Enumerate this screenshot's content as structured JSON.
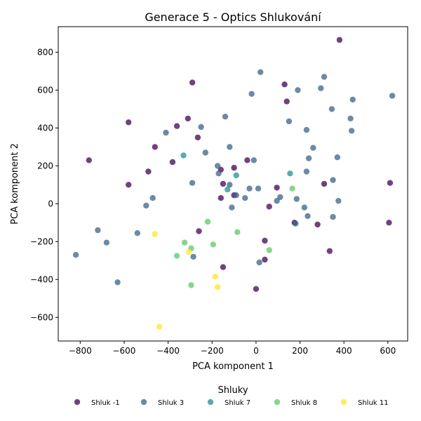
{
  "chart_data": {
    "type": "scatter",
    "title": "Generace 5 - Optics Shlukování",
    "xlabel": "PCA komponent 1",
    "ylabel": "PCA komponent 2",
    "xlim": [
      -900,
      690
    ],
    "ylim": [
      -725,
      935
    ],
    "xticks": [
      -800,
      -600,
      -400,
      -200,
      0,
      200,
      400,
      600
    ],
    "yticks": [
      -600,
      -400,
      -200,
      0,
      200,
      400,
      600,
      800
    ],
    "xtick_labels": [
      "−800",
      "−600",
      "−400",
      "−200",
      "0",
      "200",
      "400",
      "600"
    ],
    "ytick_labels": [
      "−600",
      "−400",
      "−200",
      "0",
      "200",
      "400",
      "600",
      "800"
    ],
    "grid": false,
    "legend": {
      "title": "Shluky",
      "placement": "bottom-center"
    },
    "series": [
      {
        "name": "Shluk -1",
        "color": "#440154",
        "points": [
          [
            380,
            865
          ],
          [
            -290,
            640
          ],
          [
            130,
            630
          ],
          [
            140,
            540
          ],
          [
            -310,
            450
          ],
          [
            -360,
            410
          ],
          [
            -580,
            430
          ],
          [
            -265,
            350
          ],
          [
            -460,
            300
          ],
          [
            -760,
            230
          ],
          [
            -380,
            220
          ],
          [
            -40,
            230
          ],
          [
            -490,
            170
          ],
          [
            -160,
            180
          ],
          [
            -580,
            100
          ],
          [
            -100,
            190
          ],
          [
            -150,
            105
          ],
          [
            -160,
            30
          ],
          [
            -100,
            45
          ],
          [
            95,
            85
          ],
          [
            60,
            -15
          ],
          [
            175,
            -100
          ],
          [
            280,
            -110
          ],
          [
            310,
            105
          ],
          [
            610,
            110
          ],
          [
            605,
            -100
          ],
          [
            -260,
            -145
          ],
          [
            40,
            -195
          ],
          [
            335,
            -250
          ],
          [
            40,
            -295
          ],
          [
            -150,
            -335
          ],
          [
            0,
            -450
          ]
        ]
      },
      {
        "name": "Shluk 3",
        "color": "#3b628b",
        "points": [
          [
            20,
            695
          ],
          [
            310,
            670
          ],
          [
            -20,
            580
          ],
          [
            190,
            600
          ],
          [
            295,
            610
          ],
          [
            440,
            550
          ],
          [
            620,
            570
          ],
          [
            345,
            500
          ],
          [
            -140,
            460
          ],
          [
            150,
            435
          ],
          [
            430,
            450
          ],
          [
            -250,
            405
          ],
          [
            -410,
            375
          ],
          [
            230,
            390
          ],
          [
            435,
            385
          ],
          [
            -120,
            300
          ],
          [
            260,
            295
          ],
          [
            -230,
            270
          ],
          [
            370,
            245
          ],
          [
            -175,
            200
          ],
          [
            -10,
            230
          ],
          [
            240,
            240
          ],
          [
            230,
            170
          ],
          [
            -170,
            160
          ],
          [
            -120,
            100
          ],
          [
            -290,
            110
          ],
          [
            350,
            125
          ],
          [
            -30,
            80
          ],
          [
            10,
            80
          ],
          [
            -90,
            45
          ],
          [
            -50,
            30
          ],
          [
            110,
            35
          ],
          [
            95,
            15
          ],
          [
            185,
            25
          ],
          [
            375,
            15
          ],
          [
            -470,
            30
          ],
          [
            -500,
            -10
          ],
          [
            -110,
            -20
          ],
          [
            220,
            -20
          ],
          [
            180,
            -105
          ],
          [
            350,
            -70
          ],
          [
            235,
            -65
          ],
          [
            -720,
            -140
          ],
          [
            -540,
            -155
          ],
          [
            -680,
            -205
          ],
          [
            -820,
            -270
          ],
          [
            -285,
            -280
          ],
          [
            15,
            -310
          ],
          [
            -630,
            -415
          ]
        ]
      },
      {
        "name": "Shluk 7",
        "color": "#21908d",
        "points": [
          [
            -330,
            255
          ],
          [
            -90,
            150
          ],
          [
            -130,
            75
          ],
          [
            155,
            160
          ]
        ]
      },
      {
        "name": "Shluk 8",
        "color": "#5dc863",
        "points": [
          [
            165,
            80
          ],
          [
            -220,
            -95
          ],
          [
            -85,
            -150
          ],
          [
            -195,
            -215
          ],
          [
            -325,
            -205
          ],
          [
            -295,
            -235
          ],
          [
            60,
            -245
          ],
          [
            -360,
            -275
          ],
          [
            -295,
            -430
          ]
        ]
      },
      {
        "name": "Shluk 11",
        "color": "#fde725",
        "points": [
          [
            -460,
            -160
          ],
          [
            -305,
            -255
          ],
          [
            -185,
            -385
          ],
          [
            -175,
            -440
          ],
          [
            -440,
            -650
          ]
        ]
      }
    ]
  }
}
